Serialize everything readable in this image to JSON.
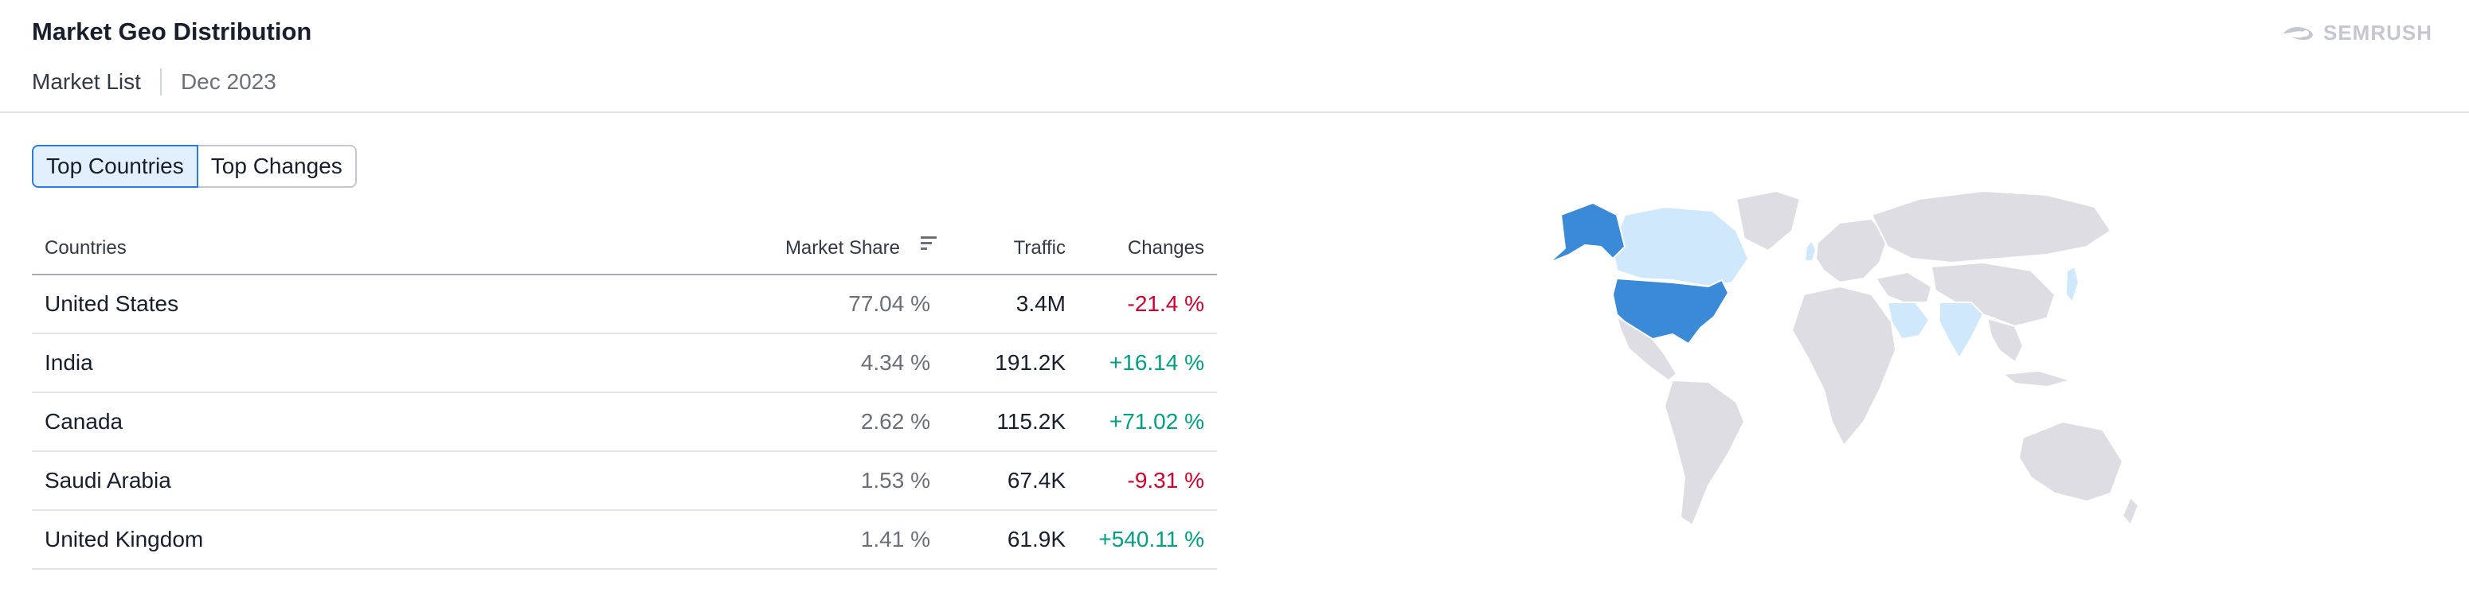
{
  "header": {
    "title": "Market Geo Distribution",
    "crumb": "Market List",
    "date": "Dec 2023",
    "logo_text": "SEMRUSH"
  },
  "tabs": [
    {
      "label": "Top Countries",
      "active": true
    },
    {
      "label": "Top Changes",
      "active": false
    }
  ],
  "table": {
    "columns": {
      "country": "Countries",
      "share": "Market Share",
      "traffic": "Traffic",
      "changes": "Changes"
    },
    "rows": [
      {
        "country": "United States",
        "share": "77.04 %",
        "traffic": "3.4M",
        "change": "-21.4 %",
        "trend": "down"
      },
      {
        "country": "India",
        "share": "4.34 %",
        "traffic": "191.2K",
        "change": "+16.14 %",
        "trend": "up"
      },
      {
        "country": "Canada",
        "share": "2.62 %",
        "traffic": "115.2K",
        "change": "+71.02 %",
        "trend": "up"
      },
      {
        "country": "Saudi Arabia",
        "share": "1.53 %",
        "traffic": "67.4K",
        "change": "-9.31 %",
        "trend": "down"
      },
      {
        "country": "United Kingdom",
        "share": "1.41 %",
        "traffic": "61.9K",
        "change": "+540.11 %",
        "trend": "up"
      }
    ]
  },
  "colors": {
    "accent": "#2c7be5",
    "map_strong": "#3a8ad8",
    "map_light": "#cfe8fb",
    "map_base": "#dddde3",
    "negative": "#d1002f",
    "positive": "#009f81"
  }
}
